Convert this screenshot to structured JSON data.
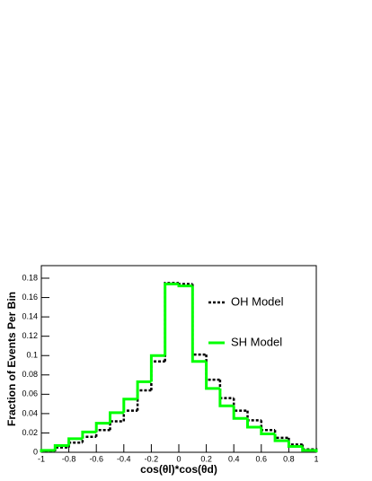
{
  "chart_data": {
    "type": "histogram",
    "x_label": "cos(θl)*cos(θd)",
    "y_label": "Fraction of Events Per Bin",
    "bins": [
      -1,
      -0.9,
      -0.8,
      -0.7,
      -0.6,
      -0.5,
      -0.4,
      -0.3,
      -0.2,
      -0.1,
      0,
      0.1,
      0.2,
      0.3,
      0.4,
      0.5,
      0.6,
      0.7,
      0.8,
      0.9,
      1
    ],
    "series": [
      {
        "name": "OH Model",
        "color": "#000000",
        "linestyle": "dotted",
        "values": [
          0.001,
          0.005,
          0.01,
          0.016,
          0.023,
          0.032,
          0.043,
          0.064,
          0.094,
          0.175,
          0.174,
          0.101,
          0.075,
          0.056,
          0.043,
          0.033,
          0.023,
          0.015,
          0.008,
          0.003
        ]
      },
      {
        "name": "SH Model",
        "color": "#00ff00",
        "linestyle": "solid",
        "values": [
          0.002,
          0.007,
          0.014,
          0.021,
          0.03,
          0.041,
          0.055,
          0.073,
          0.1,
          0.174,
          0.172,
          0.094,
          0.066,
          0.048,
          0.035,
          0.026,
          0.019,
          0.012,
          0.006,
          0.002
        ]
      }
    ],
    "xlim": [
      -1,
      1
    ],
    "ylim": [
      0,
      0.193
    ],
    "xticks": [
      -1,
      -0.8,
      -0.6,
      -0.4,
      -0.2,
      0,
      0.2,
      0.4,
      0.6,
      0.8,
      1
    ],
    "yticks": [
      0,
      0.02,
      0.04,
      0.06,
      0.08,
      0.1,
      0.12,
      0.14,
      0.16,
      0.18
    ],
    "grid": false
  }
}
